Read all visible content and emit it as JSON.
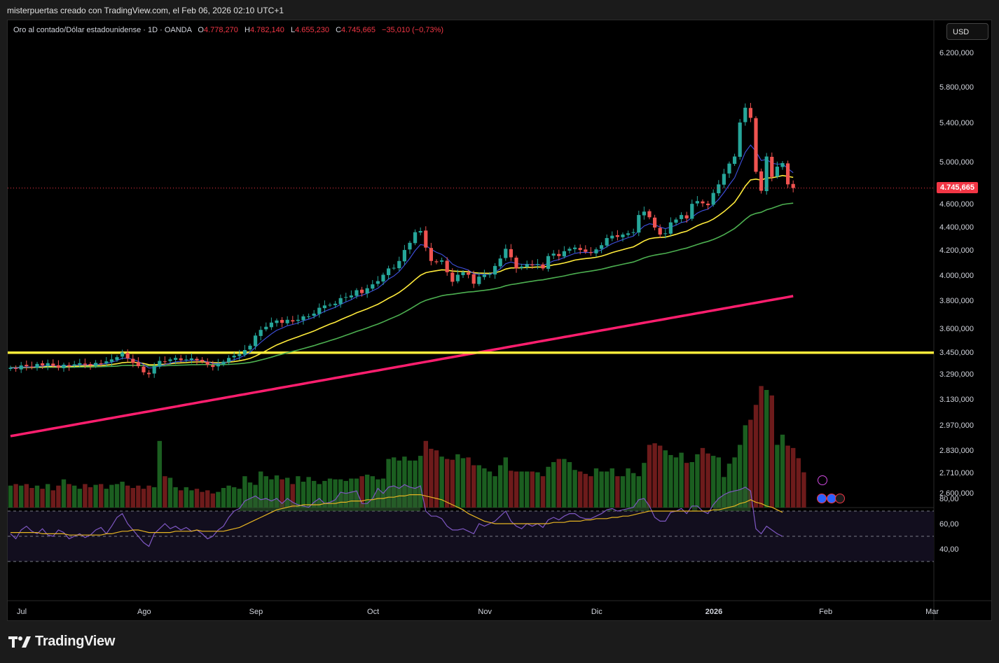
{
  "header": {
    "attribution": "misterpuertas creado con TradingView.com, el Feb 06, 2026 02:10 UTC+1"
  },
  "legend": {
    "symbol": "Oro al contado/Dólar estadounidense · 1D · OANDA",
    "o_label": "O",
    "o_value": "4.778,270",
    "h_label": "H",
    "h_value": "4.782,140",
    "l_label": "L",
    "l_value": "4.655,230",
    "c_label": "C",
    "c_value": "4.745,665",
    "change": "−35,010 (−0,73%)"
  },
  "currency_button": {
    "label": "USD"
  },
  "last_price_label": "4.745,665",
  "branding": {
    "name": "TradingView"
  },
  "colors": {
    "up": "#26a69a",
    "down": "#ef5350",
    "vol_up": "#1b5e20",
    "vol_down": "#6d1b1b",
    "ema_fast": "#3f51e0",
    "ema_mid": "#ffeb3b",
    "ema_slow": "#4caf50",
    "sma_long": "#ff1e6e",
    "hline": "#ffeb3b",
    "rsi": "#7e57c2",
    "rsi_ma": "#e6b422"
  },
  "chart_data": {
    "type": "candlestick",
    "symbol": "Oro al contado/Dólar estadounidense",
    "timeframe": "1D",
    "exchange": "OANDA",
    "scale": "log",
    "x_labels": [
      "Jul",
      "Ago",
      "Sep",
      "Oct",
      "Nov",
      "Dic",
      "2026",
      "Feb",
      "Mar"
    ],
    "y_ticks": [
      "6.200,000",
      "5.800,000",
      "5.400,000",
      "5.000,000",
      "4.600,000",
      "4.400,000",
      "4.200,000",
      "4.000,000",
      "3.800,000",
      "3.600,000",
      "3.450,000",
      "3.290,000",
      "3.130,000",
      "2.970,000",
      "2.830,000",
      "2.710,000",
      "2.600,000"
    ],
    "y_tick_values": [
      6200,
      5800,
      5400,
      5000,
      4600,
      4400,
      4200,
      4000,
      3800,
      3600,
      3450,
      3290,
      3130,
      2970,
      2830,
      2710,
      2600
    ],
    "last_price": 4745.665,
    "horizontal_line": 3430,
    "month_start_index": [
      0,
      23,
      44,
      66,
      87,
      108,
      130,
      151,
      171
    ],
    "closes": [
      3330,
      3322,
      3345,
      3340,
      3332,
      3355,
      3345,
      3360,
      3342,
      3330,
      3350,
      3338,
      3352,
      3360,
      3350,
      3345,
      3362,
      3356,
      3372,
      3385,
      3400,
      3432,
      3392,
      3362,
      3340,
      3300,
      3288,
      3340,
      3375,
      3370,
      3385,
      3395,
      3380,
      3385,
      3392,
      3378,
      3372,
      3350,
      3335,
      3355,
      3370,
      3395,
      3410,
      3420,
      3448,
      3478,
      3548,
      3588,
      3610,
      3640,
      3655,
      3638,
      3660,
      3648,
      3660,
      3685,
      3685,
      3705,
      3748,
      3765,
      3770,
      3778,
      3820,
      3828,
      3840,
      3880,
      3858,
      3895,
      3925,
      3950,
      4000,
      4050,
      4055,
      4110,
      4200,
      4260,
      4350,
      4360,
      4220,
      4110,
      4100,
      4115,
      4020,
      3945,
      4000,
      4020,
      4000,
      3930,
      3985,
      4000,
      4005,
      4070,
      4130,
      4210,
      4140,
      4050,
      4065,
      4085,
      4075,
      4085,
      4050,
      4150,
      4170,
      4150,
      4190,
      4210,
      4220,
      4200,
      4185,
      4175,
      4205,
      4240,
      4300,
      4320,
      4310,
      4330,
      4340,
      4350,
      4500,
      4530,
      4480,
      4390,
      4330,
      4340,
      4435,
      4460,
      4500,
      4470,
      4600,
      4625,
      4605,
      4588,
      4700,
      4780,
      4880,
      4980,
      5050,
      5400,
      5560,
      5450,
      4900,
      4720,
      5050,
      4850,
      4950,
      4985,
      4780,
      4745.665
    ],
    "ema_fast_values": [
      3330,
      3328,
      3333,
      3335,
      3334,
      3339,
      3340,
      3344,
      3343,
      3340,
      3343,
      3342,
      3345,
      3349,
      3349,
      3348,
      3352,
      3353,
      3358,
      3366,
      3378,
      3393,
      3393,
      3385,
      3372,
      3350,
      3328,
      3331,
      3343,
      3350,
      3360,
      3369,
      3372,
      3375,
      3380,
      3379,
      3377,
      3369,
      3358,
      3357,
      3361,
      3371,
      3383,
      3395,
      3413,
      3433,
      3467,
      3501,
      3531,
      3560,
      3585,
      3600,
      3617,
      3626,
      3637,
      3653,
      3665,
      3679,
      3702,
      3721,
      3737,
      3751,
      3773,
      3791,
      3808,
      3832,
      3841,
      3856,
      3875,
      3895,
      3929,
      3966,
      3990,
      4025,
      4077,
      4131,
      4195,
      4245,
      4238,
      4206,
      4181,
      4164,
      4131,
      4085,
      4063,
      4052,
      4037,
      4009,
      4003,
      4002,
      4003,
      4020,
      4047,
      4088,
      4102,
      4089,
      4083,
      4083,
      4080,
      4081,
      4073,
      4092,
      4111,
      4121,
      4138,
      4156,
      4172,
      4179,
      4181,
      4179,
      4186,
      4200,
      4228,
      4253,
      4270,
      4287,
      4303,
      4316,
      4362,
      4403,
      4423,
      4415,
      4394,
      4381,
      4394,
      4411,
      4434,
      4443,
      4480,
      4517,
      4539,
      4552,
      4592,
      4641,
      4704,
      4776,
      4843,
      4967,
      5092,
      5166,
      5101,
      5010,
      5021,
      4984,
      4974,
      4977,
      4932,
      4891
    ],
    "ema_mid_values": [
      3330,
      3329,
      3332,
      3333,
      3333,
      3335,
      3336,
      3338,
      3338,
      3337,
      3338,
      3338,
      3339,
      3341,
      3342,
      3342,
      3344,
      3345,
      3347,
      3351,
      3356,
      3363,
      3366,
      3366,
      3364,
      3358,
      3350,
      3349,
      3351,
      3353,
      3356,
      3360,
      3362,
      3364,
      3367,
      3368,
      3368,
      3367,
      3364,
      3363,
      3364,
      3367,
      3371,
      3376,
      3383,
      3392,
      3407,
      3425,
      3444,
      3464,
      3483,
      3498,
      3513,
      3526,
      3539,
      3553,
      3566,
      3580,
      3597,
      3613,
      3629,
      3643,
      3661,
      3677,
      3693,
      3711,
      3725,
      3740,
      3757,
      3774,
      3796,
      3819,
      3839,
      3863,
      3893,
      3926,
      3962,
      3996,
      4016,
      4025,
      4032,
      4039,
      4037,
      4029,
      4027,
      4026,
      4024,
      4016,
      4013,
      4012,
      4011,
      4016,
      4027,
      4045,
      4054,
      4054,
      4055,
      4058,
      4059,
      4062,
      4061,
      4069,
      4079,
      4085,
      4094,
      4105,
      4117,
      4124,
      4130,
      4134,
      4140,
      4149,
      4163,
      4179,
      4191,
      4203,
      4215,
      4226,
      4250,
      4276,
      4294,
      4302,
      4305,
      4308,
      4319,
      4332,
      4347,
      4358,
      4382,
      4406,
      4425,
      4440,
      4464,
      4495,
      4530,
      4571,
      4614,
      4685,
      4764,
      4822,
      4830,
      4820,
      4841,
      4842,
      4852,
      4864,
      4856,
      4846
    ],
    "ema_slow_values": [
      3330,
      3330,
      3330,
      3331,
      3331,
      3332,
      3332,
      3333,
      3333,
      3333,
      3333,
      3334,
      3334,
      3335,
      3335,
      3335,
      3336,
      3337,
      3338,
      3339,
      3341,
      3345,
      3346,
      3346,
      3346,
      3344,
      3342,
      3342,
      3343,
      3343,
      3345,
      3346,
      3347,
      3348,
      3350,
      3350,
      3351,
      3351,
      3350,
      3350,
      3351,
      3352,
      3354,
      3357,
      3360,
      3365,
      3372,
      3381,
      3390,
      3400,
      3411,
      3420,
      3430,
      3439,
      3448,
      3458,
      3468,
      3478,
      3490,
      3501,
      3513,
      3524,
      3537,
      3550,
      3563,
      3577,
      3589,
      3602,
      3616,
      3629,
      3645,
      3662,
      3678,
      3695,
      3716,
      3738,
      3762,
      3786,
      3803,
      3815,
      3826,
      3838,
      3845,
      3849,
      3855,
      3861,
      3866,
      3869,
      3874,
      3879,
      3884,
      3892,
      3901,
      3914,
      3923,
      3929,
      3936,
      3943,
      3949,
      3956,
      3960,
      3968,
      3976,
      3983,
      3991,
      4000,
      4009,
      4016,
      4023,
      4029,
      4036,
      4044,
      4054,
      4065,
      4074,
      4084,
      4093,
      4102,
      4118,
      4135,
      4148,
      4158,
      4165,
      4172,
      4183,
      4194,
      4206,
      4216,
      4231,
      4246,
      4260,
      4272,
      4288,
      4307,
      4329,
      4355,
      4382,
      4420,
      4461,
      4497,
      4514,
      4524,
      4547,
      4560,
      4577,
      4594,
      4601,
      4606
    ],
    "sma_long_start": 2910,
    "sma_long_end": 3835,
    "volumes": [
      28,
      30,
      28,
      30,
      25,
      28,
      24,
      30,
      22,
      28,
      36,
      30,
      28,
      24,
      30,
      26,
      29,
      30,
      24,
      29,
      30,
      33,
      28,
      25,
      28,
      24,
      28,
      26,
      85,
      40,
      38,
      26,
      22,
      26,
      22,
      24,
      20,
      22,
      18,
      20,
      25,
      28,
      26,
      24,
      40,
      32,
      29,
      46,
      40,
      36,
      41,
      36,
      38,
      30,
      40,
      33,
      39,
      34,
      30,
      34,
      37,
      36,
      36,
      34,
      37,
      37,
      40,
      42,
      40,
      36,
      37,
      62,
      64,
      60,
      65,
      60,
      60,
      66,
      85,
      75,
      73,
      65,
      62,
      61,
      68,
      63,
      64,
      54,
      54,
      50,
      46,
      40,
      54,
      64,
      47,
      46,
      46,
      46,
      46,
      45,
      40,
      52,
      58,
      62,
      62,
      58,
      48,
      46,
      43,
      40,
      50,
      46,
      46,
      50,
      40,
      40,
      50,
      44,
      40,
      57,
      80,
      82,
      79,
      73,
      67,
      64,
      70,
      57,
      58,
      68,
      76,
      69,
      66,
      64,
      39,
      56,
      64,
      80,
      105,
      112,
      131,
      155,
      150,
      143,
      80,
      93,
      79,
      76,
      63,
      45
    ],
    "rsi_values": [
      52,
      48,
      55,
      58,
      54,
      52,
      56,
      51,
      50,
      55,
      53,
      48,
      50,
      52,
      49,
      51,
      55,
      57,
      52,
      58,
      65,
      68,
      60,
      55,
      50,
      45,
      42,
      52,
      56,
      60,
      56,
      58,
      55,
      57,
      54,
      55,
      52,
      48,
      50,
      55,
      58,
      65,
      70,
      72,
      78,
      80,
      82,
      79,
      80,
      78,
      80,
      76,
      80,
      77,
      75,
      74,
      73,
      77,
      80,
      76,
      77,
      79,
      85,
      84,
      85,
      86,
      76,
      76,
      80,
      88,
      84,
      89,
      90,
      88,
      91,
      89,
      88,
      90,
      70,
      66,
      66,
      64,
      58,
      55,
      55,
      56,
      54,
      52,
      60,
      58,
      60,
      62,
      66,
      70,
      62,
      58,
      56,
      60,
      58,
      60,
      57,
      63,
      65,
      63,
      66,
      68,
      68,
      65,
      64,
      64,
      66,
      68,
      71,
      72,
      70,
      71,
      72,
      73,
      79,
      80,
      74,
      65,
      62,
      62,
      69,
      70,
      72,
      68,
      74,
      74,
      70,
      68,
      75,
      80,
      83,
      85,
      86,
      87,
      89,
      86,
      56,
      52,
      58,
      55,
      52,
      50
    ],
    "rsi_ma_values": [
      53,
      53,
      53,
      53,
      53,
      53,
      52,
      52,
      52,
      52,
      52,
      51,
      51,
      51,
      51,
      51,
      51,
      51,
      52,
      52,
      53,
      54,
      54,
      55,
      55,
      54,
      53,
      53,
      53,
      53,
      53,
      54,
      54,
      54,
      54,
      55,
      54,
      54,
      54,
      54,
      54,
      55,
      56,
      57,
      59,
      61,
      63,
      65,
      67,
      69,
      71,
      72,
      73,
      74,
      74,
      75,
      75,
      75,
      75,
      76,
      76,
      76,
      77,
      77,
      78,
      78,
      78,
      79,
      79,
      80,
      80,
      81,
      81,
      82,
      82,
      83,
      83,
      83,
      82,
      81,
      80,
      79,
      77,
      75,
      73,
      71,
      68,
      66,
      64,
      62,
      61,
      60,
      60,
      60,
      60,
      60,
      60,
      60,
      60,
      60,
      60,
      60,
      61,
      61,
      61,
      62,
      62,
      62,
      63,
      63,
      64,
      64,
      64,
      65,
      65,
      66,
      66,
      67,
      68,
      69,
      70,
      70,
      70,
      70,
      70,
      70,
      70,
      70,
      70,
      70,
      70,
      70,
      71,
      71,
      72,
      73,
      74,
      76,
      77,
      79,
      77,
      76,
      74,
      73,
      71,
      69
    ],
    "rsi_ticks": [
      "80,00",
      "60,00",
      "40,00"
    ],
    "rsi_tick_values": [
      80,
      60,
      40
    ],
    "rsi_bands": [
      70,
      50,
      30
    ]
  }
}
